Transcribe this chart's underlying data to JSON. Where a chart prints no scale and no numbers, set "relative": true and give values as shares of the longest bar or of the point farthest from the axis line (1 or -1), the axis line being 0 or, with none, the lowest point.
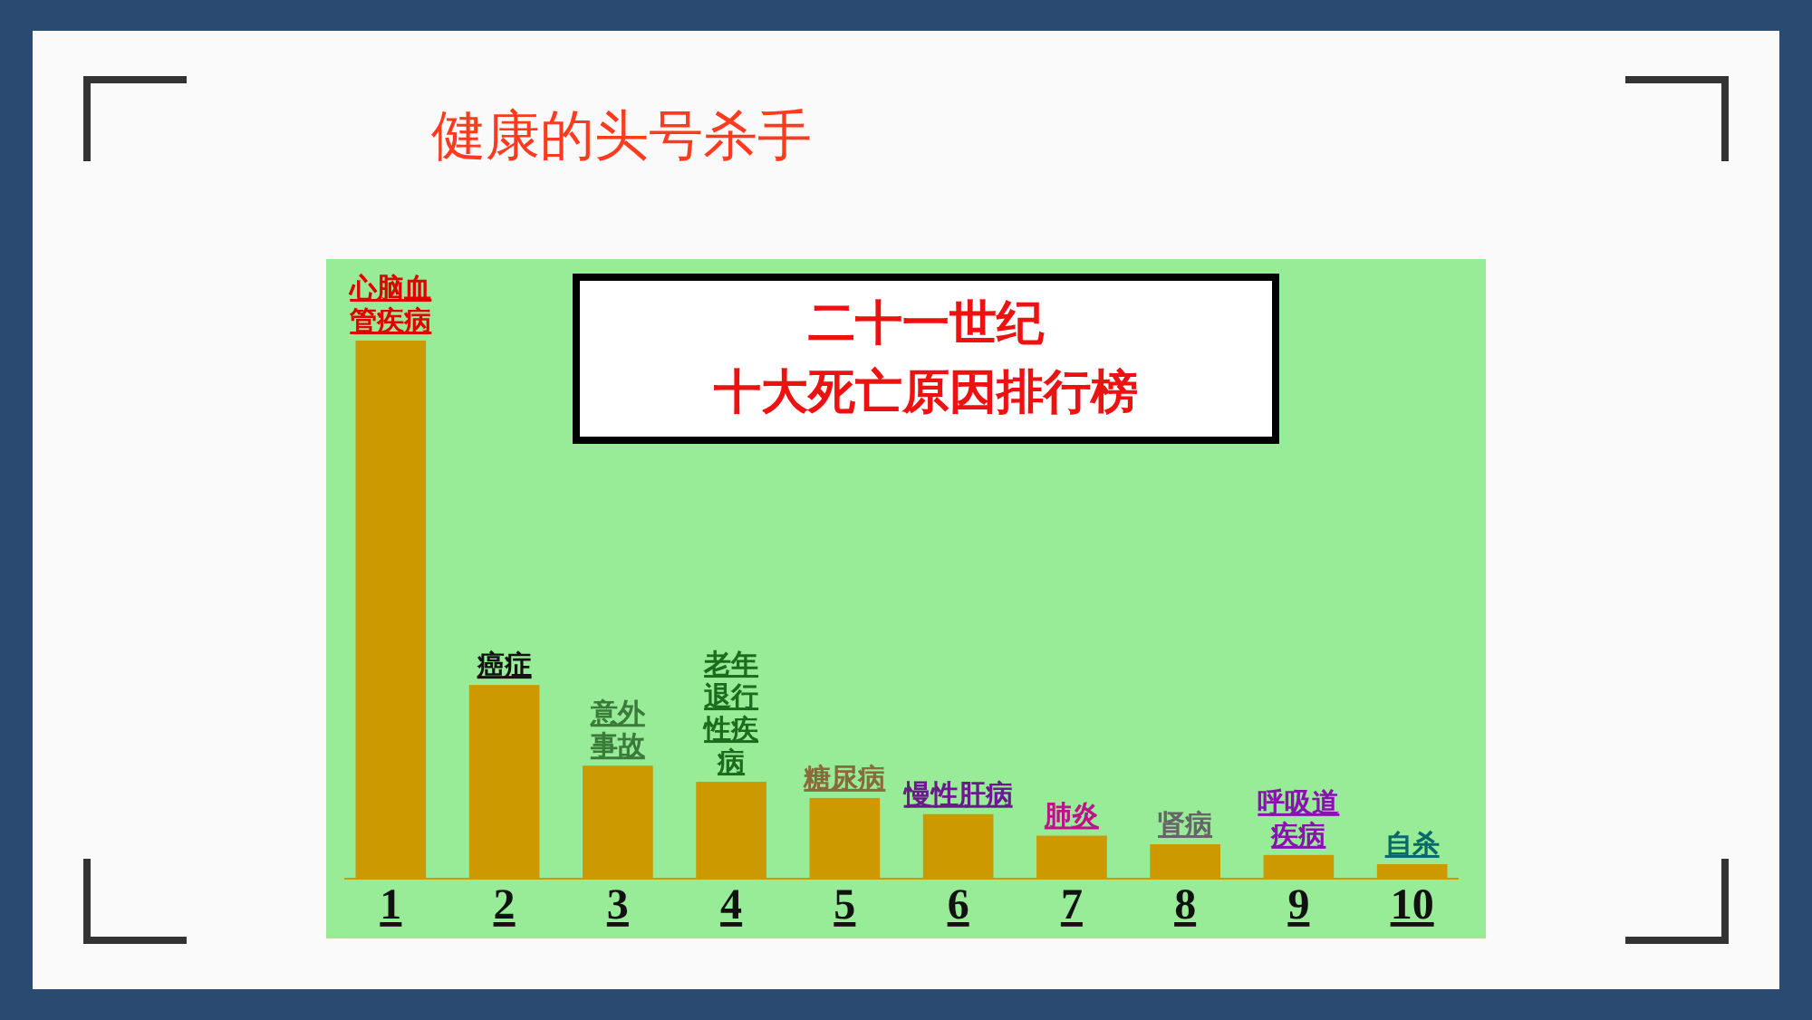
{
  "chart_data": {
    "type": "bar",
    "title": "健康的头号杀手",
    "subtitle": "二十一世纪十大死亡原因排行榜",
    "relative": true,
    "categories": [
      "1",
      "2",
      "3",
      "4",
      "5",
      "6",
      "7",
      "8",
      "9",
      "10"
    ],
    "values": [
      1,
      0.36,
      0.21,
      0.18,
      0.15,
      0.12,
      0.08,
      0.064,
      0.044,
      0.027
    ],
    "color": "#cc9900",
    "annotations": [
      "心脑血管疾病",
      "癌症",
      "意外事故",
      "老年退行性疾病",
      "糖尿病",
      "慢性肝病",
      "肺炎",
      "肾病",
      "呼吸道疾病",
      "自杀"
    ]
  }
}
